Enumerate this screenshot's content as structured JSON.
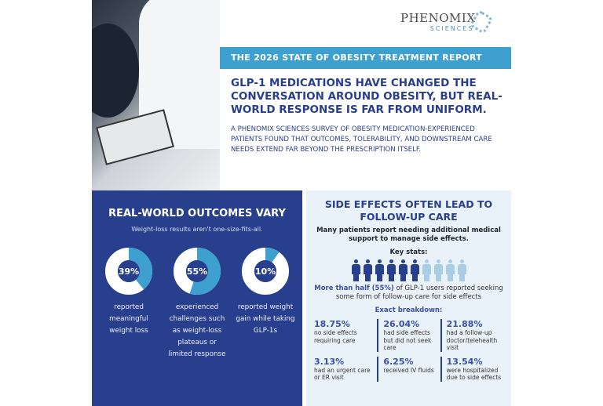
{
  "logo": {
    "name": "PHENOMIX",
    "sub": "SCIENCES"
  },
  "banner": "THE 2026 STATE OF OBESITY TREATMENT REPORT",
  "headline": "GLP-1 MEDICATIONS HAVE CHANGED THE CONVERSATION AROUND OBESITY, BUT REAL-WORLD RESPONSE IS FAR FROM UNIFORM.",
  "intro": "A PHENOMIX SCIENCES SURVEY OF OBESITY MEDICATION-EXPERIENCED PATIENTS FOUND THAT OUTCOMES, TOLERABILITY, AND DOWNSTREAM CARE NEEDS EXTEND FAR BEYOND THE PRESCRIPTION ITSELF.",
  "outcomes": {
    "title": "REAL-WORLD OUTCOMES VARY",
    "subtitle": "Weight-loss results aren't one-size-fits-all.",
    "colors": {
      "fill": "#3ea0cf",
      "rest": "#ffffff",
      "center": "#283f8d"
    },
    "items": [
      {
        "value": 39,
        "label": "39%",
        "text": "reported meaningful weight loss"
      },
      {
        "value": 55,
        "label": "55%",
        "text": "experienced challenges such as weight-loss plateaus or limited response"
      },
      {
        "value": 10,
        "label": "10%",
        "text": "reported weight gain while taking GLP-1s"
      }
    ]
  },
  "side_effects": {
    "title": "SIDE EFFECTS OFTEN LEAD TO FOLLOW-UP CARE",
    "subtitle": "Many patients report needing additional medical support to manage side effects.",
    "key_stats": "Key stats:",
    "people_filled": 6,
    "people_total": 10,
    "colors": {
      "filled": "#283f8d",
      "empty": "#a9cde6"
    },
    "highlight": "More than half (55%)",
    "followup": " of GLP-1 users reported seeking some form of follow-up care for side effects",
    "breakdown_title": "Exact breakdown:",
    "breakdown": [
      {
        "pct": "18.75%",
        "text": "no side effects requiring care"
      },
      {
        "pct": "26.04%",
        "text": "had side effects but did not seek care"
      },
      {
        "pct": "21.88%",
        "text": "had a follow-up doctor/telehealth visit"
      },
      {
        "pct": "3.13%",
        "text": "had an urgent care or ER visit"
      },
      {
        "pct": "6.25%",
        "text": "received IV fluids"
      },
      {
        "pct": "13.54%",
        "text": "were hospitalized due to side effects"
      }
    ]
  }
}
